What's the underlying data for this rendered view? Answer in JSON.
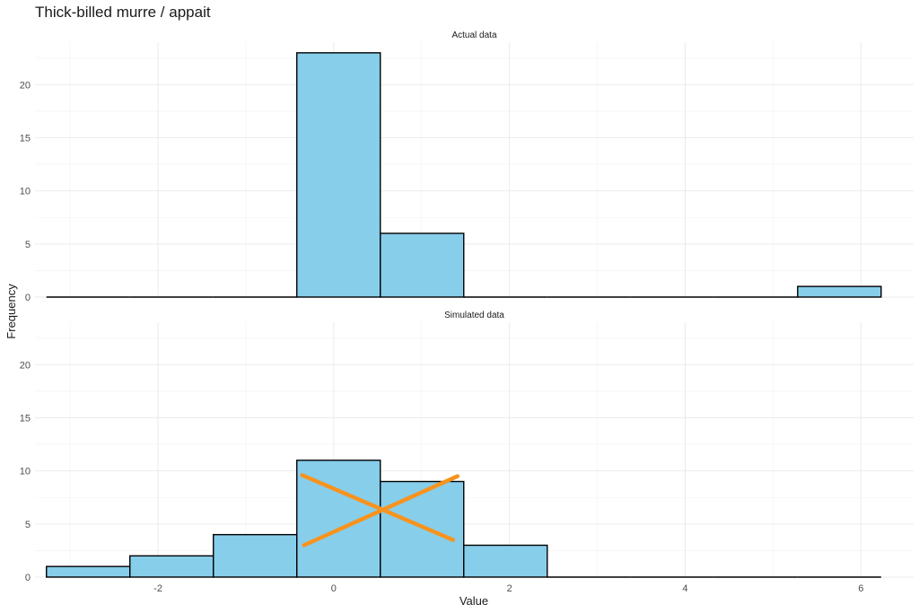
{
  "chart_data": {
    "type": "bar",
    "title": "Thick-billed murre / appait",
    "xlabel": "Value",
    "ylabel": "Frequency",
    "xlim": [
      -3.4,
      6.6
    ],
    "ylim": [
      0,
      24
    ],
    "x_ticks": [
      -2,
      0,
      2,
      4,
      6
    ],
    "y_ticks": [
      0,
      5,
      10,
      15,
      20
    ],
    "grid": true,
    "bin_edges": [
      -3.27,
      -2.32,
      -1.37,
      -0.42,
      0.53,
      1.48,
      2.43,
      3.38,
      4.33,
      5.28,
      6.23
    ],
    "panels": [
      {
        "label": "Actual data",
        "values": [
          0,
          0,
          0,
          23,
          6,
          0,
          0,
          0,
          0,
          1
        ]
      },
      {
        "label": "Simulated data",
        "values": [
          1,
          2,
          4,
          11,
          9,
          3,
          0,
          0,
          0,
          0
        ],
        "crossed_out": true
      }
    ],
    "colors": {
      "fill": "#87ceeb",
      "outline": "#000000",
      "cross": "#f7931e"
    }
  }
}
